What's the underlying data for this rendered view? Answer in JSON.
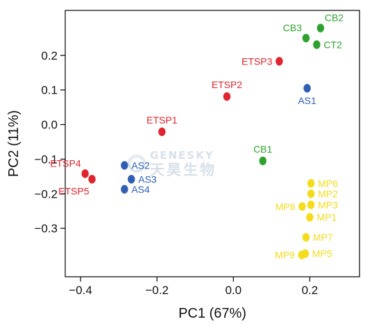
{
  "chart_data": {
    "type": "scatter",
    "xlabel": "PC1 (67%)",
    "ylabel": "PC2 (11%)",
    "xlim": [
      -0.44,
      0.33
    ],
    "ylim": [
      -0.44,
      0.33
    ],
    "x_ticks": [
      -0.4,
      -0.2,
      0.0,
      0.2
    ],
    "x_tick_labels": [
      "−0.4",
      "−0.2",
      "0.0",
      "0.2"
    ],
    "y_ticks": [
      0.2,
      0.1,
      0.0,
      -0.1,
      -0.2,
      -0.3
    ],
    "y_tick_labels": [
      "0.2",
      "0.1",
      "0.0",
      "−0.1",
      "−0.2",
      "−0.3"
    ],
    "grid": false,
    "legend": "none",
    "colors": {
      "ETSP": "#e0242f",
      "AS": "#2f5eb3",
      "CB": "#2ea12e",
      "MP": "#f4dc1c"
    },
    "points": [
      {
        "label": "CB2",
        "x": 0.228,
        "y": 0.279,
        "group": "CB",
        "pos": "above-right"
      },
      {
        "label": "CB3",
        "x": 0.19,
        "y": 0.25,
        "group": "CB",
        "pos": "above-left"
      },
      {
        "label": "CT2",
        "x": 0.218,
        "y": 0.231,
        "group": "CB",
        "pos": "right"
      },
      {
        "label": "ETSP3",
        "x": 0.12,
        "y": 0.183,
        "group": "ETSP",
        "pos": "left"
      },
      {
        "label": "ETSP2",
        "x": -0.017,
        "y": 0.081,
        "group": "ETSP",
        "pos": "above"
      },
      {
        "label": "AS1",
        "x": 0.193,
        "y": 0.105,
        "group": "AS",
        "pos": "below"
      },
      {
        "label": "ETSP1",
        "x": -0.187,
        "y": -0.021,
        "group": "ETSP",
        "pos": "above"
      },
      {
        "label": "CB1",
        "x": 0.077,
        "y": -0.105,
        "group": "CB",
        "pos": "above"
      },
      {
        "label": "ETSP4",
        "x": -0.388,
        "y": -0.142,
        "group": "ETSP",
        "pos": "above-left"
      },
      {
        "label": "ETSP5",
        "x": -0.37,
        "y": -0.158,
        "group": "ETSP",
        "pos": "below-left"
      },
      {
        "label": "AS2",
        "x": -0.285,
        "y": -0.118,
        "group": "AS",
        "pos": "right"
      },
      {
        "label": "AS3",
        "x": -0.267,
        "y": -0.158,
        "group": "AS",
        "pos": "right"
      },
      {
        "label": "AS4",
        "x": -0.285,
        "y": -0.187,
        "group": "AS",
        "pos": "right"
      },
      {
        "label": "MP6",
        "x": 0.203,
        "y": -0.17,
        "group": "MP",
        "pos": "right"
      },
      {
        "label": "MP2",
        "x": 0.203,
        "y": -0.2,
        "group": "MP",
        "pos": "right"
      },
      {
        "label": "MP3",
        "x": 0.203,
        "y": -0.232,
        "group": "MP",
        "pos": "right"
      },
      {
        "label": "MP8",
        "x": 0.18,
        "y": -0.237,
        "group": "MP",
        "pos": "left"
      },
      {
        "label": "MP1",
        "x": 0.2,
        "y": -0.268,
        "group": "MP",
        "pos": "right"
      },
      {
        "label": "MP7",
        "x": 0.19,
        "y": -0.326,
        "group": "MP",
        "pos": "right"
      },
      {
        "label": "MP5",
        "x": 0.188,
        "y": -0.373,
        "group": "MP",
        "pos": "right"
      },
      {
        "label": "MP9",
        "x": 0.179,
        "y": -0.377,
        "group": "MP",
        "pos": "left"
      }
    ]
  },
  "watermark": {
    "line1": "GENESKY",
    "line2": "天昊生物",
    "color": "#d2dbe6"
  }
}
